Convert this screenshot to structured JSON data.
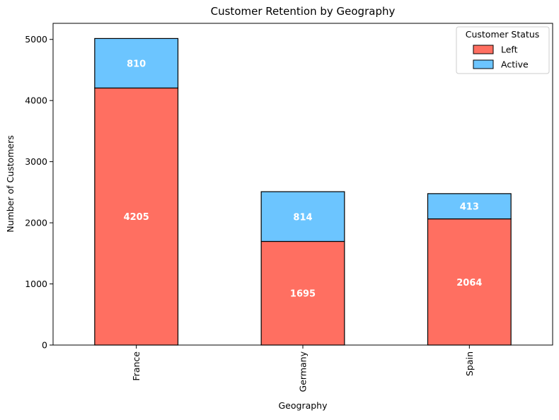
{
  "chart_data": {
    "type": "bar",
    "stacked": true,
    "title": "Customer Retention by Geography",
    "xlabel": "Geography",
    "ylabel": "Number of Customers",
    "categories": [
      "France",
      "Germany",
      "Spain"
    ],
    "series": [
      {
        "name": "Left",
        "values": [
          4205,
          1695,
          2064
        ],
        "color": "#ff6f61"
      },
      {
        "name": "Active",
        "values": [
          810,
          814,
          413
        ],
        "color": "#6cc5ff"
      }
    ],
    "ylim": [
      0,
      5263
    ],
    "yticks": [
      0,
      1000,
      2000,
      3000,
      4000,
      5000
    ],
    "ytick_labels": [
      "0",
      "1000",
      "2000",
      "3000",
      "4000",
      "5000"
    ],
    "legend": {
      "title": "Customer Status",
      "position": "top-right"
    },
    "grid": false,
    "edge_color": "#000000",
    "label_color": "#ffffff"
  }
}
